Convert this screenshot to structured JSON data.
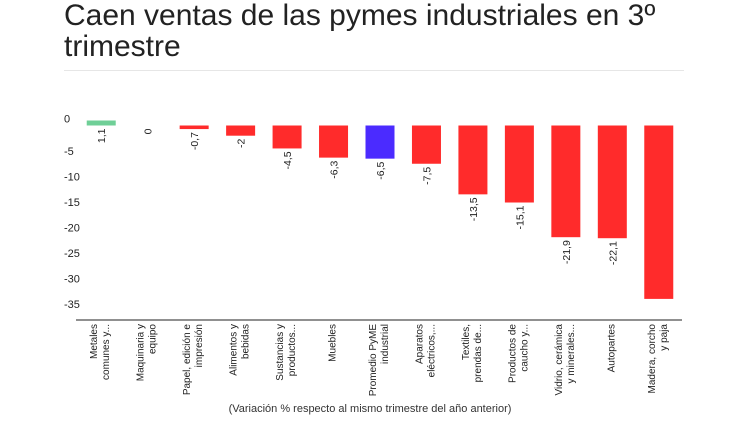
{
  "title": "Caen ventas de las pymes industriales en 3º trimestre",
  "footnote": "(Variación % respecto al mismo trimestre del año anterior)",
  "chart_data": {
    "type": "bar",
    "categories": [
      [
        "Metales",
        "comunes y..."
      ],
      [
        "Maquinaria y",
        "equipo"
      ],
      [
        "Papel, edición e",
        "impresión"
      ],
      [
        "Alimentos y",
        "bebidas"
      ],
      [
        "Sustancias y",
        "productos..."
      ],
      [
        "Muebles"
      ],
      [
        "Promedio PyME",
        "industrial"
      ],
      [
        "Aparatos",
        "eléctricos,..."
      ],
      [
        "Textiles,",
        "prendas de..."
      ],
      [
        "Productos de",
        "caucho y..."
      ],
      [
        "Vidrio, cerámica",
        "y minerales..."
      ],
      [
        "Autopartes"
      ],
      [
        "Madera, corcho",
        "y paja"
      ]
    ],
    "values": [
      1.1,
      0,
      -0.7,
      -2,
      -4.5,
      -6.3,
      -6.5,
      -7.5,
      -13.5,
      -15.1,
      -21.9,
      -22.1,
      -34.0
    ],
    "value_labels": [
      "1,1",
      "0",
      "-0,7",
      "-2",
      "-4,5",
      "-6,3",
      "-6,5",
      "-7,5",
      "-13,5",
      "-15,1",
      "-21,9",
      "-22,1",
      ""
    ],
    "colors": [
      "#6fcf97",
      "#ff2b2b",
      "#ff2b2b",
      "#ff2b2b",
      "#ff2b2b",
      "#ff2b2b",
      "#4b2bff",
      "#ff2b2b",
      "#ff2b2b",
      "#ff2b2b",
      "#ff2b2b",
      "#ff2b2b",
      "#ff2b2b"
    ],
    "y_ticks": [
      0,
      -5,
      -10,
      -15,
      -20,
      -25,
      -30,
      -35
    ],
    "y_tick_labels": [
      "0",
      "-5",
      "-10",
      "-15",
      "-20",
      "-25",
      "-30",
      "-35"
    ],
    "ylim": [
      -37,
      2
    ],
    "grid": false
  }
}
